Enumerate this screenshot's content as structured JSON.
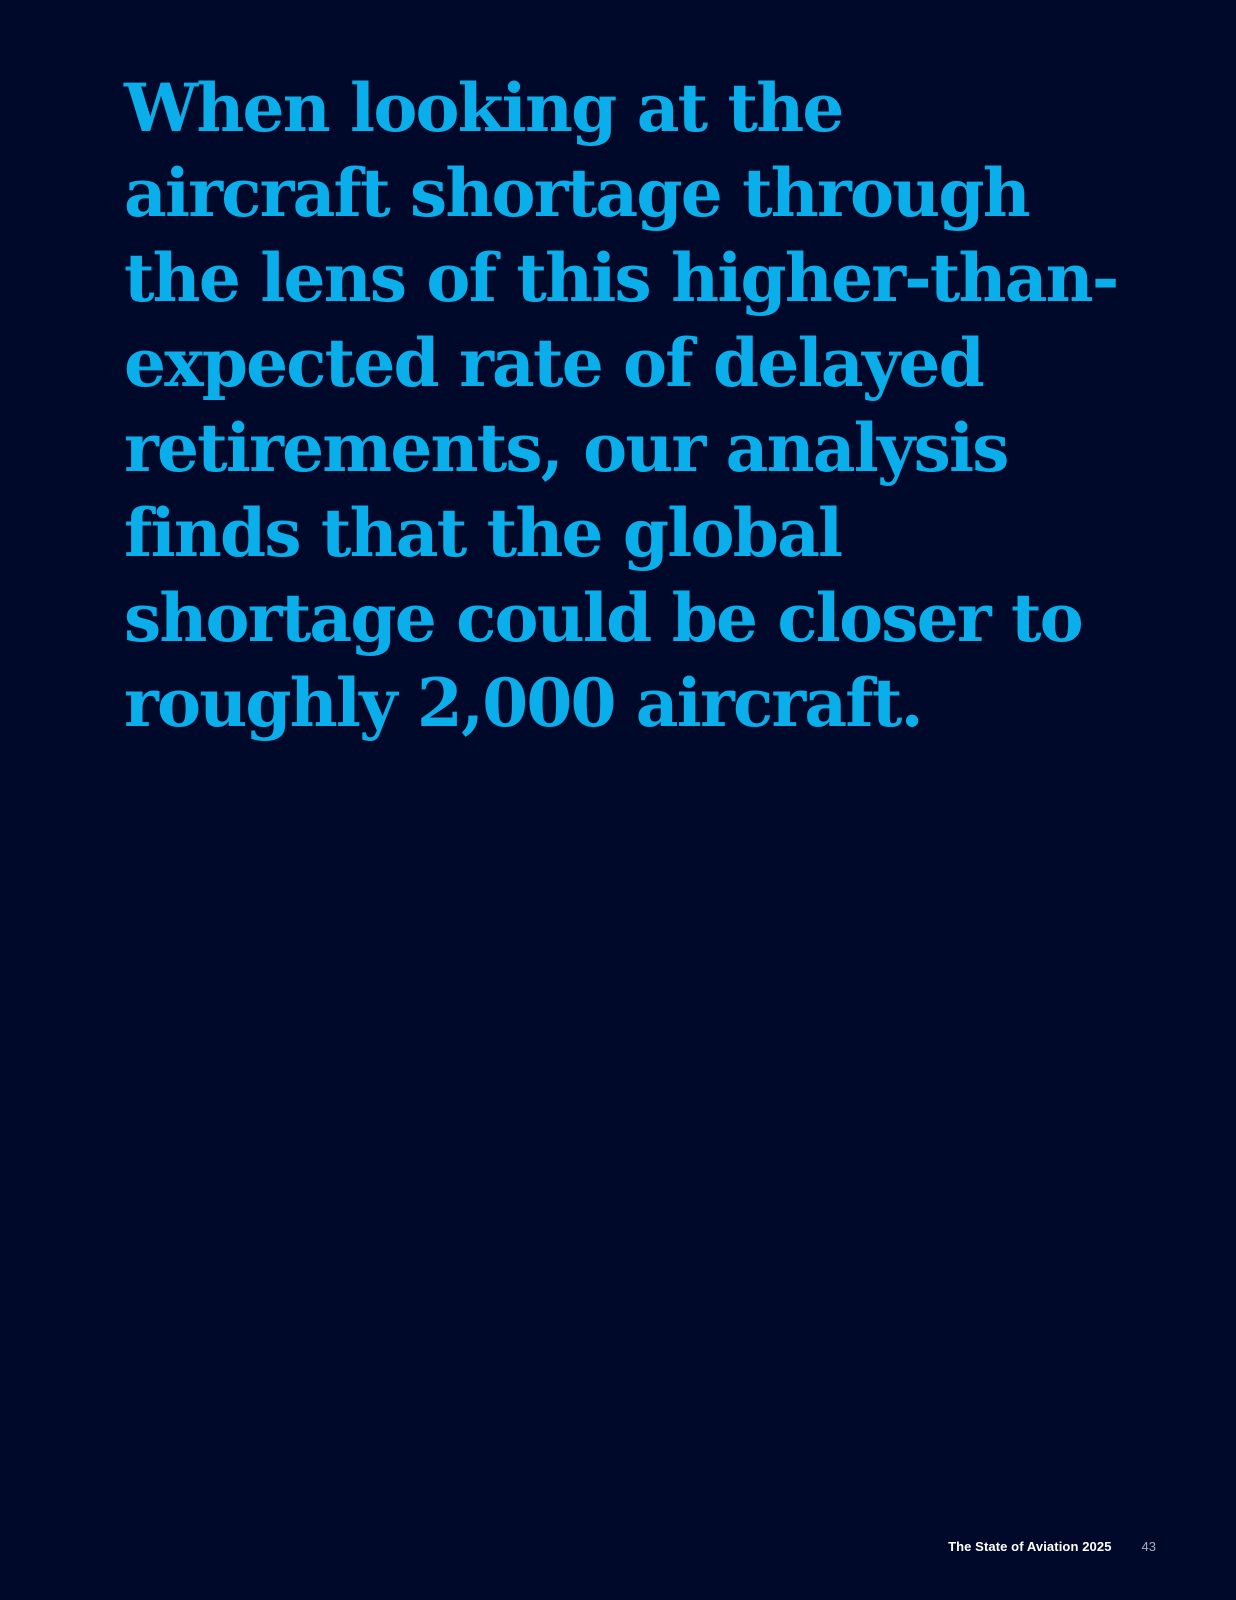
{
  "quote": {
    "lines": [
      "When looking at the",
      "aircraft shortage through",
      "the lens of this higher-than-",
      "expected rate of delayed",
      "retirements, our analysis",
      "finds that the global",
      "shortage could be closer to",
      "roughly 2,000 aircraft."
    ]
  },
  "footer": {
    "publication_title": "The State of Aviation 2025",
    "page_number": "43"
  },
  "colors": {
    "background": "#000929",
    "accent_text": "#0aaeea",
    "footer_title": "#ffffff",
    "footer_page": "#a8adbd"
  }
}
